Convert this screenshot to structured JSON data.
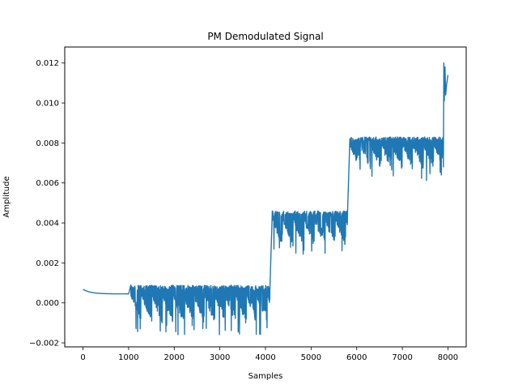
{
  "chart_data": {
    "type": "line",
    "title": "PM Demodulated Signal",
    "xlabel": "Samples",
    "ylabel": "Amplitude",
    "xlim": [
      -400,
      8400
    ],
    "ylim": [
      -0.0022,
      0.0128
    ],
    "xticks": [
      0,
      1000,
      2000,
      3000,
      4000,
      5000,
      6000,
      7000,
      8000
    ],
    "xtick_labels": [
      "0",
      "1000",
      "2000",
      "3000",
      "4000",
      "5000",
      "6000",
      "7000",
      "8000"
    ],
    "yticks": [
      -0.002,
      0.0,
      0.002,
      0.004,
      0.006,
      0.008,
      0.01,
      0.012
    ],
    "ytick_labels": [
      "−0.002",
      "0.000",
      "0.002",
      "0.004",
      "0.006",
      "0.008",
      "0.010",
      "0.012"
    ],
    "grid": false,
    "series": [
      {
        "color": "#1f77b4",
        "segments": [
          {
            "x_start": 0,
            "x_end": 1000,
            "kind": "decay",
            "y_start": 0.00068,
            "y_end": 0.00045
          },
          {
            "x_start": 1000,
            "x_end": 1050,
            "kind": "ramp",
            "y_start": 0.00045,
            "y_end": 0.0009
          },
          {
            "x_start": 1050,
            "x_end": 4100,
            "kind": "band",
            "y_top": 0.00088,
            "y_bottom": -0.0011,
            "y_min_spike": -0.0016
          },
          {
            "x_start": 4100,
            "x_end": 4150,
            "kind": "step",
            "y_start": 0.0009,
            "y_end": 0.0046
          },
          {
            "x_start": 4150,
            "x_end": 5800,
            "kind": "band",
            "y_top": 0.0046,
            "y_bottom": 0.0028,
            "y_min_spike": 0.0024
          },
          {
            "x_start": 5800,
            "x_end": 5850,
            "kind": "step",
            "y_start": 0.0046,
            "y_end": 0.0082
          },
          {
            "x_start": 5850,
            "x_end": 7900,
            "kind": "band",
            "y_top": 0.0083,
            "y_bottom": 0.0066,
            "y_min_spike": 0.0061
          },
          {
            "x_start": 7900,
            "x_end": 8000,
            "kind": "tail",
            "y_start": 0.0068,
            "y_peak": 0.012,
            "y_low": 0.0101,
            "y_end": 0.0114
          }
        ]
      }
    ]
  }
}
